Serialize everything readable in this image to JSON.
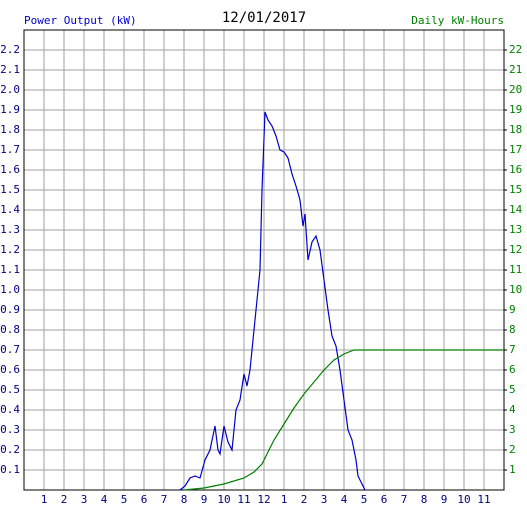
{
  "chart_data": {
    "type": "line",
    "title": "12/01/2017",
    "y_label": "Power Output (kW)",
    "y2_label": "Daily kW-Hours",
    "xlim": [
      0,
      24
    ],
    "xticks": [
      1,
      2,
      3,
      4,
      5,
      6,
      7,
      8,
      9,
      10,
      11,
      12,
      {
        "value": 13,
        "label": "1"
      },
      {
        "value": 14,
        "label": "2"
      },
      {
        "value": 15,
        "label": "3"
      },
      {
        "value": 16,
        "label": "4"
      },
      {
        "value": 17,
        "label": "5"
      },
      {
        "value": 18,
        "label": "6"
      },
      {
        "value": 19,
        "label": "7"
      },
      {
        "value": 20,
        "label": "8"
      },
      {
        "value": 21,
        "label": "9"
      },
      {
        "value": 22,
        "label": "10"
      },
      {
        "value": 23,
        "label": "11"
      }
    ],
    "ylim": [
      0,
      2.3
    ],
    "yticks": [
      0.1,
      0.2,
      0.3,
      0.4,
      0.5,
      0.6,
      0.7,
      0.8,
      0.9,
      {
        "value": 1,
        "label": "1.0"
      },
      1.1,
      1.2,
      1.3,
      1.4,
      1.5,
      1.6,
      1.7,
      1.8,
      1.9,
      {
        "value": 2,
        "label": "2.0"
      },
      2.1,
      2.2
    ],
    "y2lim": [
      0,
      23
    ],
    "y2ticks": [
      1,
      2,
      3,
      4,
      5,
      6,
      7,
      8,
      9,
      10,
      11,
      12,
      13,
      14,
      15,
      16,
      17,
      18,
      19,
      20,
      21,
      22
    ],
    "grid": true,
    "series": [
      {
        "name": "Power Output (kW)",
        "color": "#0000cc",
        "x": [
          7.8,
          8.05,
          8.3,
          8.55,
          8.8,
          9.05,
          9.3,
          9.55,
          9.7,
          9.8,
          10.0,
          10.2,
          10.4,
          10.6,
          10.8,
          11.0,
          11.15,
          11.3,
          11.5,
          11.65,
          11.8,
          11.9,
          12.05,
          12.2,
          12.4,
          12.6,
          12.8,
          13.0,
          13.2,
          13.4,
          13.6,
          13.8,
          13.95,
          14.05,
          14.2,
          14.4,
          14.6,
          14.8,
          15.0,
          15.2,
          15.4,
          15.6,
          15.8,
          16.0,
          16.2,
          16.4,
          16.6,
          16.7,
          16.9,
          17.05
        ],
        "values": [
          0,
          0.02,
          0.06,
          0.07,
          0.06,
          0.15,
          0.2,
          0.32,
          0.2,
          0.18,
          0.32,
          0.24,
          0.2,
          0.4,
          0.45,
          0.58,
          0.52,
          0.6,
          0.8,
          0.95,
          1.1,
          1.5,
          1.89,
          1.85,
          1.82,
          1.77,
          1.7,
          1.69,
          1.66,
          1.58,
          1.52,
          1.45,
          1.32,
          1.38,
          1.15,
          1.24,
          1.27,
          1.2,
          1.05,
          0.9,
          0.77,
          0.72,
          0.6,
          0.45,
          0.3,
          0.25,
          0.15,
          0.07,
          0.03,
          0
        ]
      },
      {
        "name": "Daily kW-Hours",
        "color": "#008000",
        "axis": "y2",
        "x": [
          8.0,
          9.0,
          10.0,
          11.0,
          11.5,
          11.9,
          12.5,
          13.0,
          13.5,
          14.0,
          14.5,
          15.0,
          15.5,
          16.0,
          16.5,
          17.0,
          24
        ],
        "values": [
          0,
          0.1,
          0.3,
          0.6,
          0.9,
          1.3,
          2.5,
          3.3,
          4.1,
          4.8,
          5.4,
          6.0,
          6.5,
          6.8,
          7.0,
          7.0,
          7.0
        ]
      }
    ]
  }
}
